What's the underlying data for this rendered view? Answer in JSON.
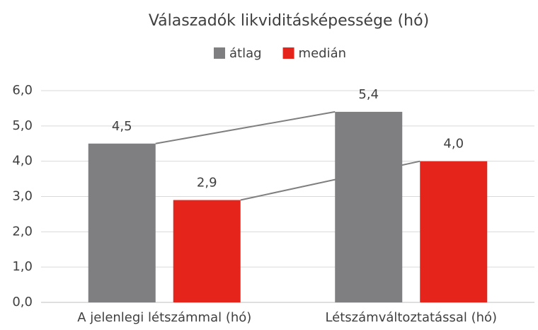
{
  "chart_data": {
    "type": "bar",
    "title": "Válaszadók likviditásképessége (hó)",
    "categories": [
      "A jelenlegi létszámmal (hó)",
      "Létszámváltoztatással (hó)"
    ],
    "series": [
      {
        "name": "átlag",
        "color": "#7f7f82",
        "values": [
          4.5,
          5.4
        ],
        "value_labels": [
          "4,5",
          "5,4"
        ]
      },
      {
        "name": "medián",
        "color": "#e5251b",
        "values": [
          2.9,
          4.0
        ],
        "value_labels": [
          "2,9",
          "4,0"
        ]
      }
    ],
    "ylim": [
      0,
      6
    ],
    "yticks": [
      {
        "value": 0,
        "label": "0,0"
      },
      {
        "value": 1,
        "label": "1,0"
      },
      {
        "value": 2,
        "label": "2,0"
      },
      {
        "value": 3,
        "label": "3,0"
      },
      {
        "value": 4,
        "label": "4,0"
      },
      {
        "value": 5,
        "label": "5,0"
      },
      {
        "value": 6,
        "label": "6,0"
      }
    ],
    "grid": true,
    "legend": "top",
    "series_lines": true,
    "series_line_color": "#7f7f7f"
  }
}
